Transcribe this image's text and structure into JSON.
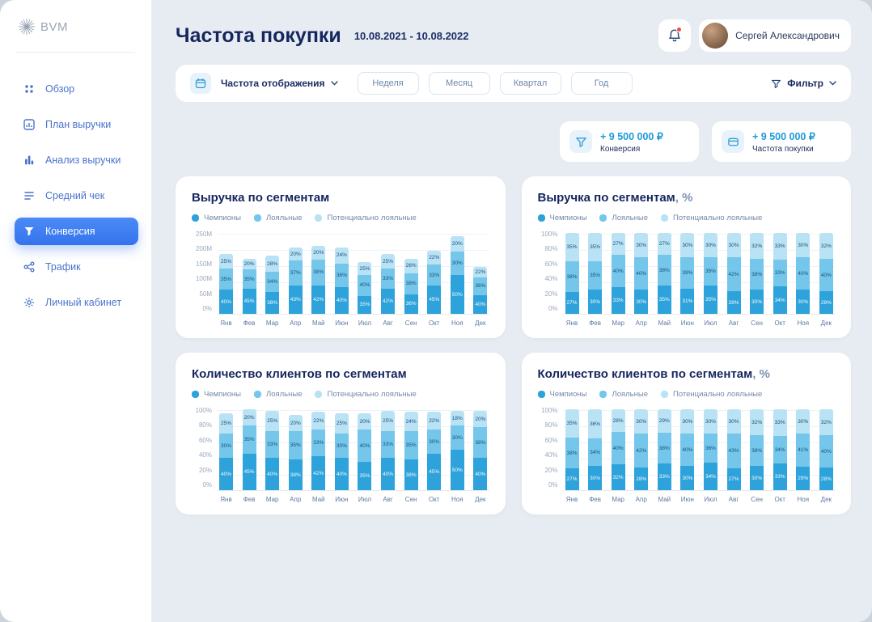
{
  "sidebar": {
    "logo": "BVM",
    "items": [
      {
        "label": "Обзор",
        "icon": "grid-icon",
        "active": false
      },
      {
        "label": "План выручки",
        "icon": "plan-chart-icon",
        "active": false
      },
      {
        "label": "Анализ выручки",
        "icon": "bars-icon",
        "active": false
      },
      {
        "label": "Средний чек",
        "icon": "receipt-icon",
        "active": false
      },
      {
        "label": "Конверсия",
        "icon": "funnel-icon",
        "active": true
      },
      {
        "label": "Трафик",
        "icon": "share-icon",
        "active": false
      },
      {
        "label": "Личный кабинет",
        "icon": "gear-icon",
        "active": false
      }
    ]
  },
  "header": {
    "title": "Частота покупки",
    "date_range": "10.08.2021 - 10.08.2022",
    "user_name": "Сергей Александрович"
  },
  "toolbar": {
    "display_frequency_label": "Частота отображения",
    "period_buttons": [
      "Неделя",
      "Месяц",
      "Квартал",
      "Год"
    ],
    "filter_label": "Фильтр"
  },
  "stat_cards": [
    {
      "value": "+ 9 500 000 ₽",
      "label": "Конверсия",
      "icon": "funnel-icon"
    },
    {
      "value": "+ 9 500 000 ₽",
      "label": "Частота покупки",
      "icon": "card-icon"
    }
  ],
  "colors": {
    "accent_blue": "#3b7df0",
    "value_blue": "#1e9ad8",
    "title_navy": "#15265d",
    "notification_red": "#ef4b4b",
    "series": [
      "#2ea2da",
      "#74c6ea",
      "#b9e2f5"
    ]
  },
  "chart_data": [
    {
      "type": "bar",
      "stacked": true,
      "title": "Выручка по сегментам",
      "title_suffix": "",
      "categories": [
        "Янв",
        "Фев",
        "Мар",
        "Апр",
        "Май",
        "Июн",
        "Июл",
        "Авг",
        "Сен",
        "Окт",
        "Ноя",
        "Дек"
      ],
      "series": [
        {
          "name": "Чемпионы",
          "values": [
            74,
            77,
            68,
            88,
            88,
            82,
            56,
            78,
            61,
            88,
            120,
            58
          ]
        },
        {
          "name": "Лояльные",
          "values": [
            65,
            60,
            61,
            76,
            80,
            74,
            64,
            61,
            65,
            64,
            72,
            55
          ]
        },
        {
          "name": "Потенциально лояльные",
          "values": [
            46,
            34,
            51,
            41,
            42,
            49,
            40,
            46,
            44,
            43,
            48,
            32
          ]
        }
      ],
      "colors": [
        "#2ea2da",
        "#74c6ea",
        "#b9e2f5"
      ],
      "y_ticks": [
        "250M",
        "200M",
        "150M",
        "100M",
        "50M",
        "0%"
      ],
      "ymax": 250,
      "labels": "share",
      "legend_position": "top",
      "grid": true
    },
    {
      "type": "bar",
      "stacked": true,
      "title": "Выручка по сегментам",
      "title_suffix": ", %",
      "categories": [
        "Янв",
        "Фев",
        "Мар",
        "Апр",
        "Май",
        "Июн",
        "Июл",
        "Авг",
        "Сен",
        "Окт",
        "Ноя",
        "Дек"
      ],
      "series": [
        {
          "name": "Чемпионы",
          "values": [
            27,
            30,
            33,
            30,
            35,
            31,
            35,
            28,
            30,
            34,
            30,
            28
          ]
        },
        {
          "name": "Лояльные",
          "values": [
            38,
            35,
            40,
            40,
            38,
            39,
            35,
            42,
            38,
            33,
            40,
            40
          ]
        },
        {
          "name": "Потенциально лояльные",
          "values": [
            35,
            35,
            27,
            30,
            27,
            30,
            30,
            30,
            32,
            33,
            30,
            32
          ]
        }
      ],
      "colors": [
        "#2ea2da",
        "#74c6ea",
        "#b9e2f5"
      ],
      "y_ticks": [
        "100%",
        "80%",
        "60%",
        "40%",
        "20%",
        "0%"
      ],
      "ymax": 100,
      "labels": "value",
      "legend_position": "top",
      "grid": true
    },
    {
      "type": "bar",
      "stacked": true,
      "title": "Количество клиентов по сегментам",
      "title_suffix": "",
      "categories": [
        "Янв",
        "Фев",
        "Мар",
        "Апр",
        "Май",
        "Июн",
        "Июл",
        "Авг",
        "Сен",
        "Окт",
        "Ноя",
        "Дек"
      ],
      "series": [
        {
          "name": "Чемпионы",
          "values": [
            40,
            45,
            40,
            38,
            42,
            40,
            35,
            40,
            38,
            45,
            50,
            40
          ]
        },
        {
          "name": "Лояльные",
          "values": [
            30,
            35,
            33,
            35,
            33,
            30,
            40,
            33,
            35,
            30,
            30,
            38
          ]
        },
        {
          "name": "Потенциально лояльные",
          "values": [
            25,
            20,
            25,
            20,
            22,
            25,
            20,
            25,
            24,
            22,
            18,
            20
          ]
        }
      ],
      "colors": [
        "#2ea2da",
        "#74c6ea",
        "#b9e2f5"
      ],
      "y_ticks": [
        "100%",
        "80%",
        "60%",
        "40%",
        "20%",
        "0%"
      ],
      "ymax": 100,
      "labels": "value",
      "legend_position": "top",
      "grid": true
    },
    {
      "type": "bar",
      "stacked": true,
      "title": "Количество клиентов по сегментам",
      "title_suffix": ", %",
      "categories": [
        "Янв",
        "Фев",
        "Мар",
        "Апр",
        "Май",
        "Июн",
        "Июл",
        "Авг",
        "Сен",
        "Окт",
        "Ноя",
        "Дек"
      ],
      "series": [
        {
          "name": "Чемпионы",
          "values": [
            27,
            30,
            32,
            28,
            33,
            30,
            34,
            27,
            30,
            33,
            29,
            28
          ]
        },
        {
          "name": "Лояльные",
          "values": [
            38,
            34,
            40,
            42,
            38,
            40,
            36,
            43,
            38,
            34,
            41,
            40
          ]
        },
        {
          "name": "Потенциально лояльные",
          "values": [
            35,
            36,
            28,
            30,
            29,
            30,
            30,
            30,
            32,
            33,
            30,
            32
          ]
        }
      ],
      "colors": [
        "#2ea2da",
        "#74c6ea",
        "#b9e2f5"
      ],
      "y_ticks": [
        "100%",
        "80%",
        "60%",
        "40%",
        "20%",
        "0%"
      ],
      "ymax": 100,
      "labels": "value",
      "legend_position": "top",
      "grid": true
    }
  ]
}
